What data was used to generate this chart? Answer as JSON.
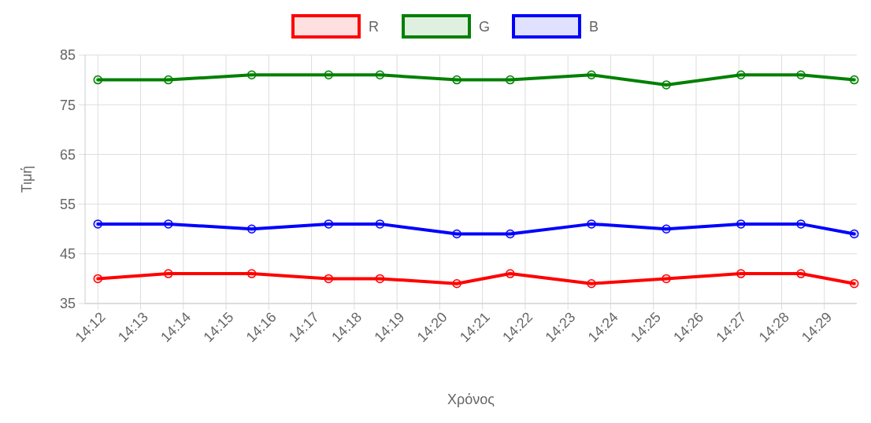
{
  "chart_data": {
    "type": "line",
    "xlabel": "Χρόνος",
    "ylabel": "Τιμή",
    "x": [
      14.2,
      14.2275,
      14.26,
      14.29,
      14.31,
      14.34,
      14.3608,
      14.3925,
      14.4217,
      14.4508,
      14.4742,
      14.495
    ],
    "series": [
      {
        "name": "R",
        "color": "#ff0000",
        "values": [
          40,
          41,
          41,
          40,
          40,
          39,
          41,
          39,
          40,
          41,
          41,
          39
        ]
      },
      {
        "name": "G",
        "color": "#008000",
        "values": [
          80,
          80,
          81,
          81,
          81,
          80,
          80,
          81,
          79,
          81,
          81,
          80
        ]
      },
      {
        "name": "B",
        "color": "#0000ff",
        "values": [
          51,
          51,
          50,
          51,
          51,
          49,
          49,
          51,
          50,
          51,
          51,
          49
        ]
      }
    ],
    "xlim": [
      14.195,
      14.496
    ],
    "xticks": [
      {
        "value": 14.2,
        "label": "14:12"
      },
      {
        "value": 14.216667,
        "label": "14:13"
      },
      {
        "value": 14.233333,
        "label": "14:14"
      },
      {
        "value": 14.25,
        "label": "14:15"
      },
      {
        "value": 14.266667,
        "label": "14:16"
      },
      {
        "value": 14.283333,
        "label": "14:17"
      },
      {
        "value": 14.3,
        "label": "14:18"
      },
      {
        "value": 14.316667,
        "label": "14:19"
      },
      {
        "value": 14.333333,
        "label": "14:20"
      },
      {
        "value": 14.35,
        "label": "14:21"
      },
      {
        "value": 14.366667,
        "label": "14:22"
      },
      {
        "value": 14.383333,
        "label": "14:23"
      },
      {
        "value": 14.4,
        "label": "14:24"
      },
      {
        "value": 14.416667,
        "label": "14:25"
      },
      {
        "value": 14.433333,
        "label": "14:26"
      },
      {
        "value": 14.45,
        "label": "14:27"
      },
      {
        "value": 14.466667,
        "label": "14:28"
      },
      {
        "value": 14.483333,
        "label": "14:29"
      }
    ],
    "ylim": [
      35,
      85
    ],
    "yticks": [
      35,
      45,
      55,
      65,
      75,
      85
    ],
    "grid": true,
    "legend": "top",
    "marker": "circle",
    "line_style": "solid"
  }
}
